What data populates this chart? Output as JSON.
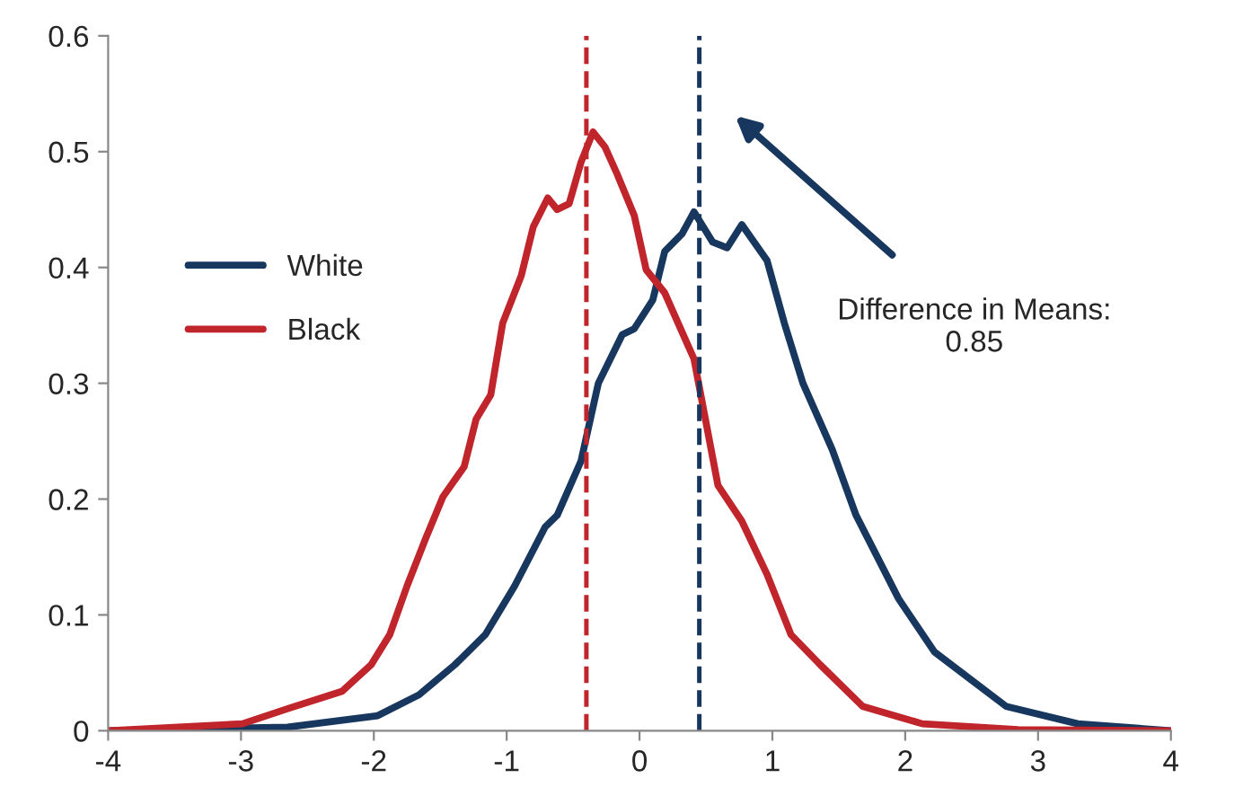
{
  "chart_data": {
    "type": "line",
    "xlim": [
      -4,
      4
    ],
    "xticks": [
      -4,
      -3,
      -2,
      -1,
      0,
      1,
      2,
      3,
      4
    ],
    "ylim": [
      0,
      0.6
    ],
    "yticks": [
      0,
      0.1,
      0.2,
      0.3,
      0.4,
      0.5,
      0.6
    ],
    "grid": false,
    "legend": "left",
    "line_style": "solid",
    "marker": "none",
    "series": [
      {
        "name": "White",
        "color": "#17375e",
        "x": [
          -4,
          -2.65,
          -1.97,
          -1.66,
          -1.39,
          -1.16,
          -0.94,
          -0.71,
          -0.62,
          -0.44,
          -0.31,
          -0.13,
          -0.04,
          0.1,
          0.19,
          0.32,
          0.41,
          0.55,
          0.66,
          0.77,
          0.96,
          1.09,
          1.23,
          1.45,
          1.63,
          1.95,
          2.22,
          2.76,
          3.3,
          4
        ],
        "values": [
          0,
          0.003,
          0.013,
          0.031,
          0.057,
          0.083,
          0.125,
          0.176,
          0.186,
          0.233,
          0.3,
          0.342,
          0.347,
          0.372,
          0.414,
          0.429,
          0.448,
          0.422,
          0.417,
          0.437,
          0.406,
          0.352,
          0.3,
          0.243,
          0.186,
          0.114,
          0.068,
          0.021,
          0.006,
          0
        ]
      },
      {
        "name": "Black",
        "color": "#c0252b",
        "x": [
          -4,
          -2.99,
          -2.65,
          -2.24,
          -2.02,
          -1.88,
          -1.75,
          -1.61,
          -1.48,
          -1.32,
          -1.23,
          -1.12,
          -1.03,
          -0.89,
          -0.8,
          -0.69,
          -0.62,
          -0.53,
          -0.44,
          -0.35,
          -0.26,
          -0.17,
          -0.04,
          0.05,
          0.19,
          0.41,
          0.59,
          0.77,
          0.96,
          1.14,
          1.36,
          1.68,
          2.13,
          2.85,
          4
        ],
        "values": [
          0,
          0.006,
          0.019,
          0.034,
          0.057,
          0.083,
          0.125,
          0.166,
          0.202,
          0.228,
          0.269,
          0.29,
          0.352,
          0.393,
          0.435,
          0.46,
          0.45,
          0.455,
          0.491,
          0.517,
          0.504,
          0.481,
          0.445,
          0.398,
          0.378,
          0.321,
          0.212,
          0.181,
          0.135,
          0.083,
          0.057,
          0.021,
          0.006,
          0.001,
          0
        ]
      }
    ],
    "ref_lines": [
      {
        "axis": "x",
        "value": -0.4,
        "color": "#c0252b",
        "line_style": "dashed"
      },
      {
        "axis": "x",
        "value": 0.45,
        "color": "#17375e",
        "line_style": "dashed"
      }
    ],
    "annotations": [
      "Difference in Means:\n0.85"
    ]
  }
}
